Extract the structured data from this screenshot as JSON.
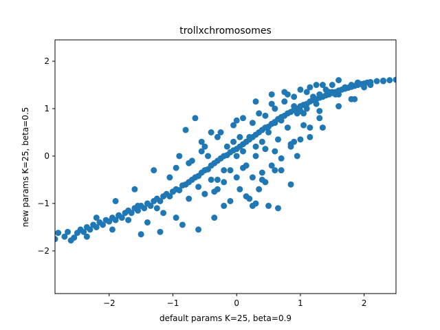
{
  "chart_data": {
    "type": "scatter",
    "title": "trollxchromosomes",
    "xlabel": "default params K=25, beta=0.9",
    "ylabel": "new params K=25, beta=0.5",
    "xlim": [
      -2.85,
      2.5
    ],
    "ylim": [
      -2.9,
      2.45
    ],
    "xticks": [
      -2,
      -1,
      0,
      1,
      2
    ],
    "yticks": [
      -2,
      -1,
      0,
      1,
      2
    ],
    "xtick_labels": [
      "−2",
      "−1",
      "0",
      "1",
      "2"
    ],
    "ytick_labels": [
      "−2",
      "−1",
      "0",
      "1",
      "2"
    ],
    "grid": false,
    "marker_color": "#1f77b4",
    "series": [
      {
        "x": [
          -2.85,
          -2.7,
          -2.65,
          -2.55,
          -2.5,
          -2.45,
          -2.4,
          -2.35,
          -2.3,
          -2.25,
          -2.2,
          -2.15,
          -2.1,
          -2.05,
          -2.0,
          -1.95,
          -1.9,
          -1.85,
          -1.8,
          -1.75,
          -1.7,
          -1.65,
          -1.6,
          -1.55,
          -1.5,
          -1.45,
          -1.4,
          -1.35,
          -1.3,
          -1.25,
          -1.2,
          -1.15,
          -1.1,
          -1.05,
          -1.0,
          -0.95,
          -0.9,
          -0.85,
          -0.8,
          -0.75,
          -0.7,
          -0.65,
          -0.6,
          -0.55,
          -0.5,
          -0.45,
          -0.4,
          -0.35,
          -0.3,
          -0.25,
          -0.2,
          -0.15,
          -0.1,
          -0.05,
          0.0,
          0.05,
          0.1,
          0.15,
          0.2,
          0.25,
          0.3,
          0.35,
          0.4,
          0.45,
          0.5,
          0.55,
          0.6,
          0.65,
          0.7,
          0.75,
          0.8,
          0.85,
          0.9,
          0.95,
          1.0,
          1.05,
          1.1,
          1.15,
          1.2,
          1.25,
          1.3,
          1.35,
          1.4,
          1.45,
          1.5,
          1.55,
          1.6,
          1.65,
          1.7,
          1.75,
          1.8,
          1.85,
          1.9,
          1.95,
          2.0,
          2.05,
          2.1,
          2.2,
          2.3,
          2.4,
          2.5
        ],
        "y": [
          -1.75,
          -1.7,
          -1.6,
          -1.72,
          -1.62,
          -1.55,
          -1.6,
          -1.5,
          -1.55,
          -1.45,
          -1.5,
          -1.4,
          -1.45,
          -1.35,
          -1.38,
          -1.3,
          -1.35,
          -1.25,
          -1.3,
          -1.2,
          -1.15,
          -1.2,
          -1.1,
          -1.15,
          -1.05,
          -1.1,
          -1.0,
          -1.05,
          -0.95,
          -0.9,
          -0.95,
          -0.85,
          -0.8,
          -0.85,
          -0.75,
          -0.7,
          -0.72,
          -0.62,
          -0.6,
          -0.55,
          -0.5,
          -0.45,
          -0.42,
          -0.35,
          -0.3,
          -0.28,
          -0.2,
          -0.15,
          -0.1,
          -0.05,
          0.0,
          0.02,
          0.08,
          0.12,
          0.15,
          0.2,
          0.25,
          0.3,
          0.35,
          0.4,
          0.45,
          0.5,
          0.55,
          0.6,
          0.62,
          0.68,
          0.72,
          0.78,
          0.82,
          0.85,
          0.9,
          0.93,
          0.97,
          1.0,
          1.05,
          1.08,
          1.1,
          1.15,
          1.18,
          1.2,
          1.23,
          1.25,
          1.28,
          1.3,
          1.33,
          1.35,
          1.38,
          1.4,
          1.42,
          1.44,
          1.46,
          1.48,
          1.5,
          1.52,
          1.53,
          1.55,
          1.56,
          1.58,
          1.59,
          1.6,
          1.61
        ]
      },
      {
        "x": [
          -2.8,
          -2.6,
          -2.35,
          -1.95,
          -1.7,
          -1.4,
          -1.15,
          -0.95,
          -0.75,
          -0.5,
          -0.3,
          -0.1,
          0.1,
          0.3,
          0.5,
          0.7,
          0.9,
          1.1,
          1.3,
          1.5,
          1.7,
          1.9,
          2.1,
          2.3,
          -2.2,
          -1.85,
          -1.55,
          -1.25,
          -1.0,
          -0.8,
          -0.6,
          -0.4,
          -0.2,
          0.0,
          0.2,
          0.4,
          0.6,
          0.8,
          1.0,
          1.2,
          1.4,
          1.6,
          1.8,
          2.0
        ],
        "y": [
          -1.62,
          -1.78,
          -1.7,
          -1.55,
          -1.35,
          -1.4,
          -1.2,
          -1.3,
          -0.9,
          -0.8,
          -0.5,
          -0.3,
          0.1,
          0.2,
          0.5,
          0.75,
          1.05,
          1.0,
          1.3,
          1.35,
          1.45,
          1.55,
          1.5,
          1.58,
          -1.3,
          -1.25,
          -1.05,
          -1.1,
          -0.75,
          -0.6,
          -0.65,
          -0.5,
          -0.3,
          0.0,
          0.4,
          0.3,
          0.7,
          0.6,
          0.95,
          1.25,
          1.4,
          1.3,
          1.5,
          1.45
        ]
      },
      {
        "x": [
          -0.85,
          -0.6,
          -0.35,
          -0.2,
          0.05,
          0.25,
          0.45,
          0.65,
          0.85,
          -1.2,
          -1.5,
          -1.05,
          -0.95,
          -0.55,
          -0.25,
          0.0,
          0.3,
          0.55,
          0.75,
          1.0,
          1.15,
          1.35,
          0.9,
          0.6,
          0.35,
          0.15,
          -0.05,
          -0.3,
          -0.5,
          -0.7,
          1.6,
          1.45,
          1.25,
          1.05
        ],
        "y": [
          -1.45,
          -1.55,
          -1.3,
          -1.05,
          -0.7,
          -1.05,
          -0.55,
          -1.1,
          -0.6,
          -1.6,
          -1.65,
          -0.45,
          -0.25,
          0.1,
          0.5,
          0.75,
          1.15,
          1.3,
          1.35,
          1.4,
          1.45,
          1.5,
          0.3,
          -0.3,
          -0.7,
          -0.2,
          0.3,
          0.4,
          0.2,
          -0.1,
          1.6,
          1.35,
          1.1,
          0.9
        ]
      },
      {
        "x": [
          -0.1,
          0.15,
          0.4,
          0.7,
          0.95,
          1.15,
          1.35,
          1.6,
          1.85,
          -0.3,
          -0.5,
          0.6,
          0.85,
          1.05,
          -0.65,
          -0.8,
          -1.3,
          -1.6,
          -1.9,
          0.3,
          0.5,
          0.2,
          0.95,
          1.3,
          1.55,
          1.8,
          -0.05,
          0.1
        ],
        "y": [
          -0.95,
          -0.85,
          -0.5,
          -0.3,
          0.0,
          0.4,
          0.6,
          1.05,
          1.2,
          -0.7,
          -0.8,
          0.1,
          0.25,
          0.65,
          0.8,
          0.55,
          -0.3,
          -0.7,
          -0.95,
          -1.0,
          -1.05,
          -0.9,
          0.9,
          0.95,
          1.3,
          1.2,
          0.65,
          0.8
        ]
      },
      {
        "x": [
          -0.55,
          -0.4,
          -0.15,
          0.05,
          0.25,
          0.45,
          0.6,
          0.75,
          0.9,
          0.35,
          0.55,
          0.8,
          1.1,
          1.25,
          1.5,
          -0.9,
          -0.75,
          -0.45
        ],
        "y": [
          0.3,
          0.5,
          0.2,
          0.4,
          0.7,
          0.85,
          1.0,
          1.15,
          1.25,
          0.9,
          1.1,
          1.3,
          1.35,
          1.5,
          1.5,
          0.0,
          -0.15,
          0.0
        ]
      },
      {
        "x": [
          0.1,
          0.25,
          0.4,
          0.55,
          0.7,
          0.85,
          1.0,
          1.15,
          1.3,
          0.0,
          -0.2,
          -0.35,
          0.3,
          0.45,
          0.65
        ],
        "y": [
          -0.25,
          -0.45,
          -0.35,
          -0.2,
          -0.05,
          0.2,
          0.35,
          0.6,
          0.8,
          -0.45,
          -0.55,
          -0.75,
          0.0,
          0.15,
          0.35
        ]
      }
    ]
  }
}
